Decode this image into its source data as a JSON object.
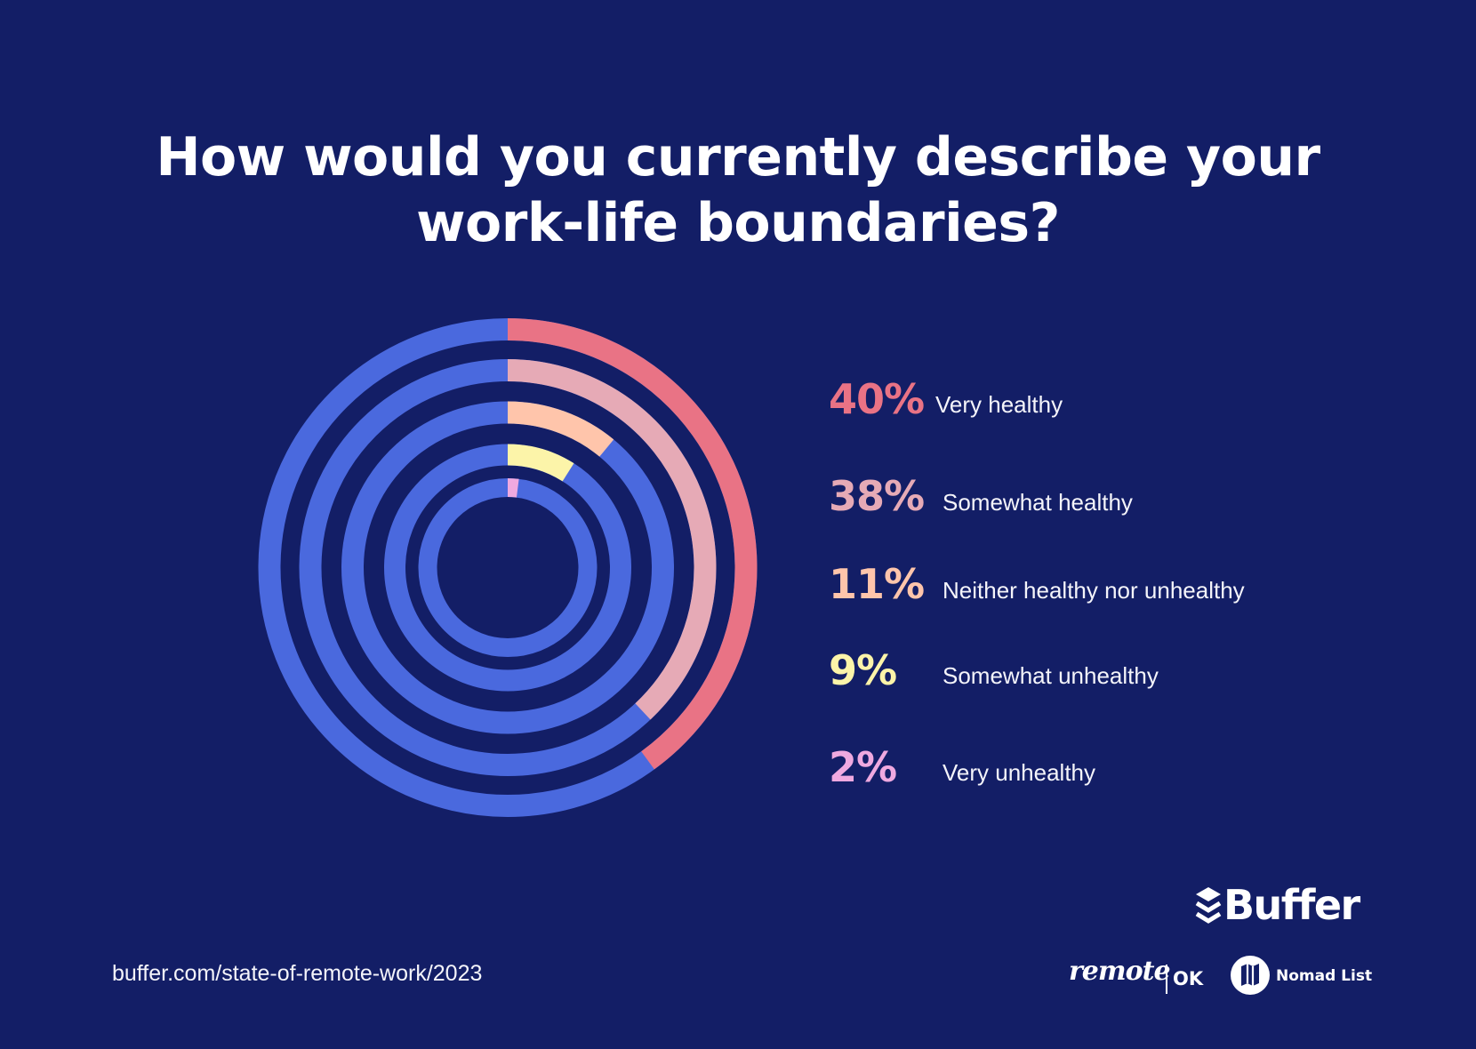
{
  "title": {
    "line1": "How would you currently describe your",
    "line2": "work-life boundaries?"
  },
  "colors": {
    "background": "#131E66",
    "ring_base": "#4A69DE",
    "very_healthy": "#E97385",
    "somewhat_healthy": "#E6AAB6",
    "neither": "#FFC5AB",
    "somewhat_unhealthy": "#FCF4A9",
    "very_unhealthy": "#EFA9E0"
  },
  "legend": [
    {
      "pct": "40%",
      "label": "Very healthy",
      "color": "#E97385"
    },
    {
      "pct": "38%",
      "label": "Somewhat healthy",
      "color": "#E6AAB6"
    },
    {
      "pct": "11%",
      "label": "Neither healthy nor unhealthy",
      "color": "#FFC5AB"
    },
    {
      "pct": "9%",
      "label": "Somewhat unhealthy",
      "color": "#FCF4A9"
    },
    {
      "pct": "2%",
      "label": "Very unhealthy",
      "color": "#EFA9E0"
    }
  ],
  "chart_data": {
    "type": "radial-bar",
    "title": "How would you currently describe your work-life boundaries?",
    "categories": [
      "Very healthy",
      "Somewhat healthy",
      "Neither healthy nor unhealthy",
      "Somewhat unhealthy",
      "Very unhealthy"
    ],
    "values": [
      40,
      38,
      11,
      9,
      2
    ],
    "unit": "%",
    "colors": [
      "#E97385",
      "#E6AAB6",
      "#FFC5AB",
      "#FCF4A9",
      "#EFA9E0"
    ],
    "track_color": "#4A69DE",
    "legend_position": "right",
    "ring_order": "outer-to-inner"
  },
  "footer": {
    "url": "buffer.com/state-of-remote-work/2023",
    "buffer_brand": "Buffer",
    "remote_brand": "remote",
    "ok_brand": "OK",
    "nomad_brand": "Nomad List"
  }
}
